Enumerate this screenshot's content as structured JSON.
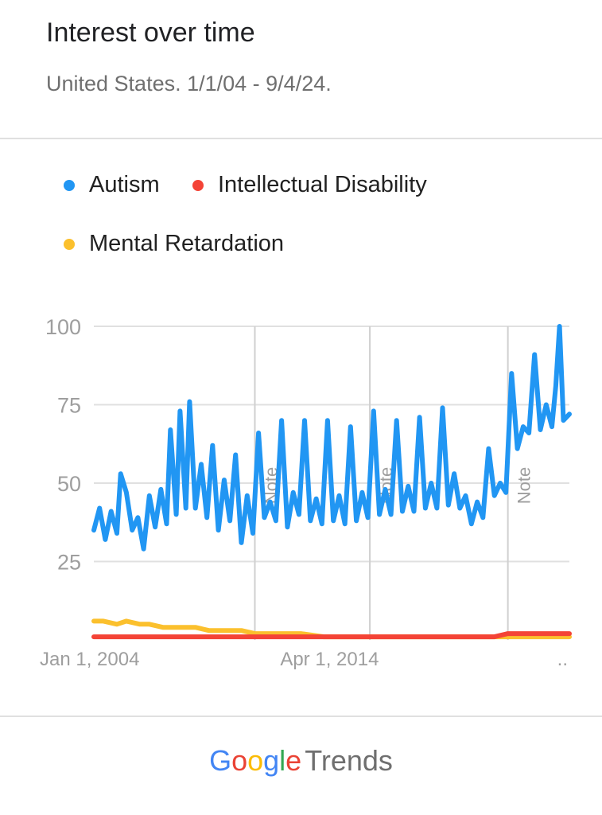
{
  "header": {
    "title": "Interest over time",
    "subtitle": "United States. 1/1/04 - 9/4/24."
  },
  "brand": {
    "google_letters": [
      {
        "ch": "G",
        "color": "#4285F4"
      },
      {
        "ch": "o",
        "color": "#EA4335"
      },
      {
        "ch": "o",
        "color": "#FBBC05"
      },
      {
        "ch": "g",
        "color": "#4285F4"
      },
      {
        "ch": "l",
        "color": "#34A853"
      },
      {
        "ch": "e",
        "color": "#EA4335"
      }
    ],
    "product": "Trends"
  },
  "chart_data": {
    "type": "line",
    "title": "Interest over time",
    "subtitle": "United States. 1/1/04 - 9/4/24.",
    "x_range": [
      "2004-01-01",
      "2024-09-04"
    ],
    "x_tick_labels": [
      {
        "label": "Jan 1, 2004",
        "date": "2004-01-01"
      },
      {
        "label": "Apr 1, 2014",
        "date": "2014-04-01"
      },
      {
        "label": "..",
        "date": "2024-09-04"
      }
    ],
    "ylim": [
      0,
      100
    ],
    "y_ticks": [
      25,
      50,
      75,
      100
    ],
    "grid": true,
    "legend_position": "top",
    "notes": [
      {
        "label": "Note",
        "date": "2011-01-01"
      },
      {
        "label": "Note",
        "date": "2016-01-01"
      },
      {
        "label": "Note",
        "date": "2022-01-01"
      }
    ],
    "series": [
      {
        "name": "Autism",
        "color": "#2196F3",
        "points": [
          [
            "2004-01-01",
            35
          ],
          [
            "2004-04-01",
            42
          ],
          [
            "2004-07-01",
            32
          ],
          [
            "2004-10-01",
            41
          ],
          [
            "2005-01-01",
            34
          ],
          [
            "2005-03-01",
            53
          ],
          [
            "2005-06-01",
            47
          ],
          [
            "2005-09-01",
            35
          ],
          [
            "2005-12-01",
            39
          ],
          [
            "2006-03-01",
            29
          ],
          [
            "2006-06-01",
            46
          ],
          [
            "2006-09-01",
            36
          ],
          [
            "2006-12-01",
            48
          ],
          [
            "2007-03-01",
            37
          ],
          [
            "2007-05-01",
            67
          ],
          [
            "2007-08-01",
            40
          ],
          [
            "2007-10-01",
            73
          ],
          [
            "2008-01-01",
            42
          ],
          [
            "2008-03-01",
            76
          ],
          [
            "2008-06-01",
            42
          ],
          [
            "2008-09-01",
            56
          ],
          [
            "2008-12-01",
            39
          ],
          [
            "2009-03-01",
            62
          ],
          [
            "2009-06-01",
            35
          ],
          [
            "2009-09-01",
            51
          ],
          [
            "2009-12-01",
            38
          ],
          [
            "2010-03-01",
            59
          ],
          [
            "2010-06-01",
            31
          ],
          [
            "2010-09-01",
            46
          ],
          [
            "2010-12-01",
            34
          ],
          [
            "2011-03-01",
            66
          ],
          [
            "2011-06-01",
            39
          ],
          [
            "2011-09-01",
            44
          ],
          [
            "2011-12-01",
            38
          ],
          [
            "2012-03-01",
            70
          ],
          [
            "2012-06-01",
            36
          ],
          [
            "2012-09-01",
            47
          ],
          [
            "2012-12-01",
            40
          ],
          [
            "2013-03-01",
            70
          ],
          [
            "2013-06-01",
            38
          ],
          [
            "2013-09-01",
            45
          ],
          [
            "2013-12-01",
            37
          ],
          [
            "2014-03-01",
            70
          ],
          [
            "2014-06-01",
            38
          ],
          [
            "2014-09-01",
            46
          ],
          [
            "2014-12-01",
            37
          ],
          [
            "2015-03-01",
            68
          ],
          [
            "2015-06-01",
            38
          ],
          [
            "2015-09-01",
            47
          ],
          [
            "2015-12-01",
            39
          ],
          [
            "2016-03-01",
            73
          ],
          [
            "2016-06-01",
            40
          ],
          [
            "2016-09-01",
            48
          ],
          [
            "2016-12-01",
            40
          ],
          [
            "2017-03-01",
            70
          ],
          [
            "2017-06-01",
            41
          ],
          [
            "2017-09-01",
            49
          ],
          [
            "2017-12-01",
            41
          ],
          [
            "2018-03-01",
            71
          ],
          [
            "2018-06-01",
            42
          ],
          [
            "2018-09-01",
            50
          ],
          [
            "2018-12-01",
            42
          ],
          [
            "2019-03-01",
            74
          ],
          [
            "2019-06-01",
            43
          ],
          [
            "2019-09-01",
            53
          ],
          [
            "2019-12-01",
            42
          ],
          [
            "2020-03-01",
            46
          ],
          [
            "2020-06-01",
            37
          ],
          [
            "2020-09-01",
            44
          ],
          [
            "2020-12-01",
            39
          ],
          [
            "2021-03-01",
            61
          ],
          [
            "2021-06-01",
            46
          ],
          [
            "2021-09-01",
            50
          ],
          [
            "2021-12-01",
            47
          ],
          [
            "2022-03-01",
            85
          ],
          [
            "2022-06-01",
            61
          ],
          [
            "2022-09-01",
            68
          ],
          [
            "2022-12-01",
            66
          ],
          [
            "2023-03-01",
            91
          ],
          [
            "2023-06-01",
            67
          ],
          [
            "2023-09-01",
            75
          ],
          [
            "2023-12-01",
            68
          ],
          [
            "2024-02-01",
            81
          ],
          [
            "2024-04-01",
            100
          ],
          [
            "2024-06-01",
            70
          ],
          [
            "2024-09-04",
            72
          ]
        ]
      },
      {
        "name": "Intellectual Disability",
        "color": "#F44336",
        "points": [
          [
            "2004-01-01",
            1
          ],
          [
            "2008-01-01",
            1
          ],
          [
            "2012-01-01",
            1
          ],
          [
            "2016-01-01",
            1
          ],
          [
            "2020-01-01",
            1
          ],
          [
            "2021-06-01",
            1
          ],
          [
            "2022-01-01",
            2
          ],
          [
            "2022-06-01",
            2
          ],
          [
            "2023-01-01",
            2
          ],
          [
            "2023-06-01",
            2
          ],
          [
            "2024-01-01",
            2
          ],
          [
            "2024-09-04",
            2
          ]
        ]
      },
      {
        "name": "Mental Retardation",
        "color": "#FBC02D",
        "points": [
          [
            "2004-01-01",
            6
          ],
          [
            "2004-06-01",
            6
          ],
          [
            "2005-01-01",
            5
          ],
          [
            "2005-06-01",
            6
          ],
          [
            "2006-01-01",
            5
          ],
          [
            "2006-06-01",
            5
          ],
          [
            "2007-01-01",
            4
          ],
          [
            "2007-06-01",
            4
          ],
          [
            "2008-01-01",
            4
          ],
          [
            "2008-06-01",
            4
          ],
          [
            "2009-01-01",
            3
          ],
          [
            "2009-06-01",
            3
          ],
          [
            "2010-01-01",
            3
          ],
          [
            "2010-06-01",
            3
          ],
          [
            "2011-01-01",
            2
          ],
          [
            "2011-06-01",
            2
          ],
          [
            "2012-01-01",
            2
          ],
          [
            "2013-01-01",
            2
          ],
          [
            "2014-01-01",
            1
          ],
          [
            "2016-01-01",
            1
          ],
          [
            "2018-01-01",
            1
          ],
          [
            "2020-01-01",
            1
          ],
          [
            "2022-01-01",
            1
          ],
          [
            "2024-09-04",
            1
          ]
        ]
      }
    ]
  }
}
